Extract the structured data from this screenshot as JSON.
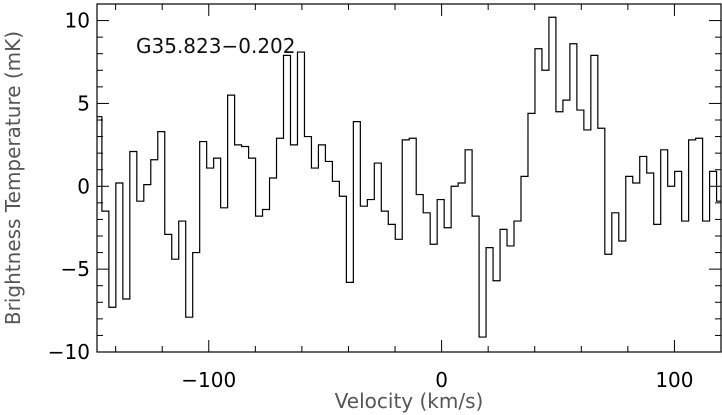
{
  "chart_data": {
    "type": "line",
    "step": true,
    "annotation": "G35.823−0.202",
    "xlabel": "Velocity (km/s)",
    "ylabel": "Brightness Temperature (mK)",
    "xlim": [
      -148,
      120
    ],
    "ylim": [
      -10,
      11
    ],
    "xticks": [
      {
        "value": -100,
        "label": "−100"
      },
      {
        "value": 0,
        "label": "0"
      },
      {
        "value": 100,
        "label": "100"
      }
    ],
    "yticks": [
      {
        "value": 10,
        "label": "10"
      },
      {
        "value": 5,
        "label": "5"
      },
      {
        "value": 0,
        "label": "0"
      },
      {
        "value": -5,
        "label": "−5"
      },
      {
        "value": -10,
        "label": "−10"
      }
    ],
    "grid": false,
    "series": [
      {
        "x": [
          -147.4,
          -144.4,
          -141.4,
          -138.4,
          -135.4,
          -132.4,
          -129.4,
          -126.4,
          -123.4,
          -120.4,
          -117.4,
          -114.4,
          -111.4,
          -108.4,
          -105.4,
          -102.4,
          -99.4,
          -96.4,
          -93.4,
          -90.4,
          -87.4,
          -84.4,
          -81.4,
          -78.4,
          -75.4,
          -72.4,
          -69.4,
          -66.4,
          -63.4,
          -60.4,
          -57.4,
          -54.4,
          -51.4,
          -48.4,
          -45.4,
          -42.4,
          -39.4,
          -36.4,
          -33.4,
          -30.4,
          -27.4,
          -24.4,
          -21.4,
          -18.4,
          -15.4,
          -12.4,
          -9.4,
          -6.4,
          -3.4,
          -0.4,
          2.6,
          5.6,
          8.6,
          11.6,
          14.6,
          17.6,
          20.6,
          23.6,
          26.6,
          29.6,
          32.6,
          35.6,
          38.6,
          41.6,
          44.6,
          47.6,
          50.6,
          53.6,
          56.6,
          59.6,
          62.6,
          65.6,
          68.6,
          71.6,
          74.6,
          77.6,
          80.6,
          83.6,
          86.6,
          89.6,
          92.6,
          95.6,
          98.6,
          101.6,
          104.6,
          107.6,
          110.6,
          113.6,
          116.6,
          119.6
        ],
        "values": [
          4.2,
          -1.5,
          -7.3,
          0.2,
          -6.8,
          2.1,
          -0.9,
          0.1,
          1.6,
          3.3,
          -2.9,
          -4.4,
          -2.1,
          -7.9,
          -4.0,
          2.7,
          1.1,
          1.7,
          -1.3,
          5.5,
          2.5,
          2.4,
          1.7,
          -1.8,
          -1.4,
          0.5,
          2.9,
          7.9,
          2.5,
          8.1,
          3.0,
          1.1,
          2.5,
          1.5,
          0.3,
          -0.6,
          -5.8,
          3.9,
          -1.2,
          -0.8,
          1.4,
          -1.5,
          -2.3,
          -3.2,
          2.8,
          2.9,
          -0.5,
          -1.6,
          -3.5,
          -0.8,
          -2.5,
          0.0,
          0.2,
          2.2,
          -1.8,
          -9.1,
          -3.7,
          -5.7,
          -2.6,
          -3.6,
          -2.1,
          0.6,
          4.4,
          8.3,
          7.0,
          10.2,
          4.5,
          5.2,
          8.6,
          4.6,
          3.4,
          7.9,
          3.5,
          -4.1,
          -1.6,
          -3.3,
          0.6,
          0.2,
          1.8,
          0.8,
          -2.3,
          2.2,
          0.0,
          0.9,
          -2.1,
          2.8,
          2.9,
          -2.1,
          0.9,
          -0.9
        ]
      }
    ]
  }
}
